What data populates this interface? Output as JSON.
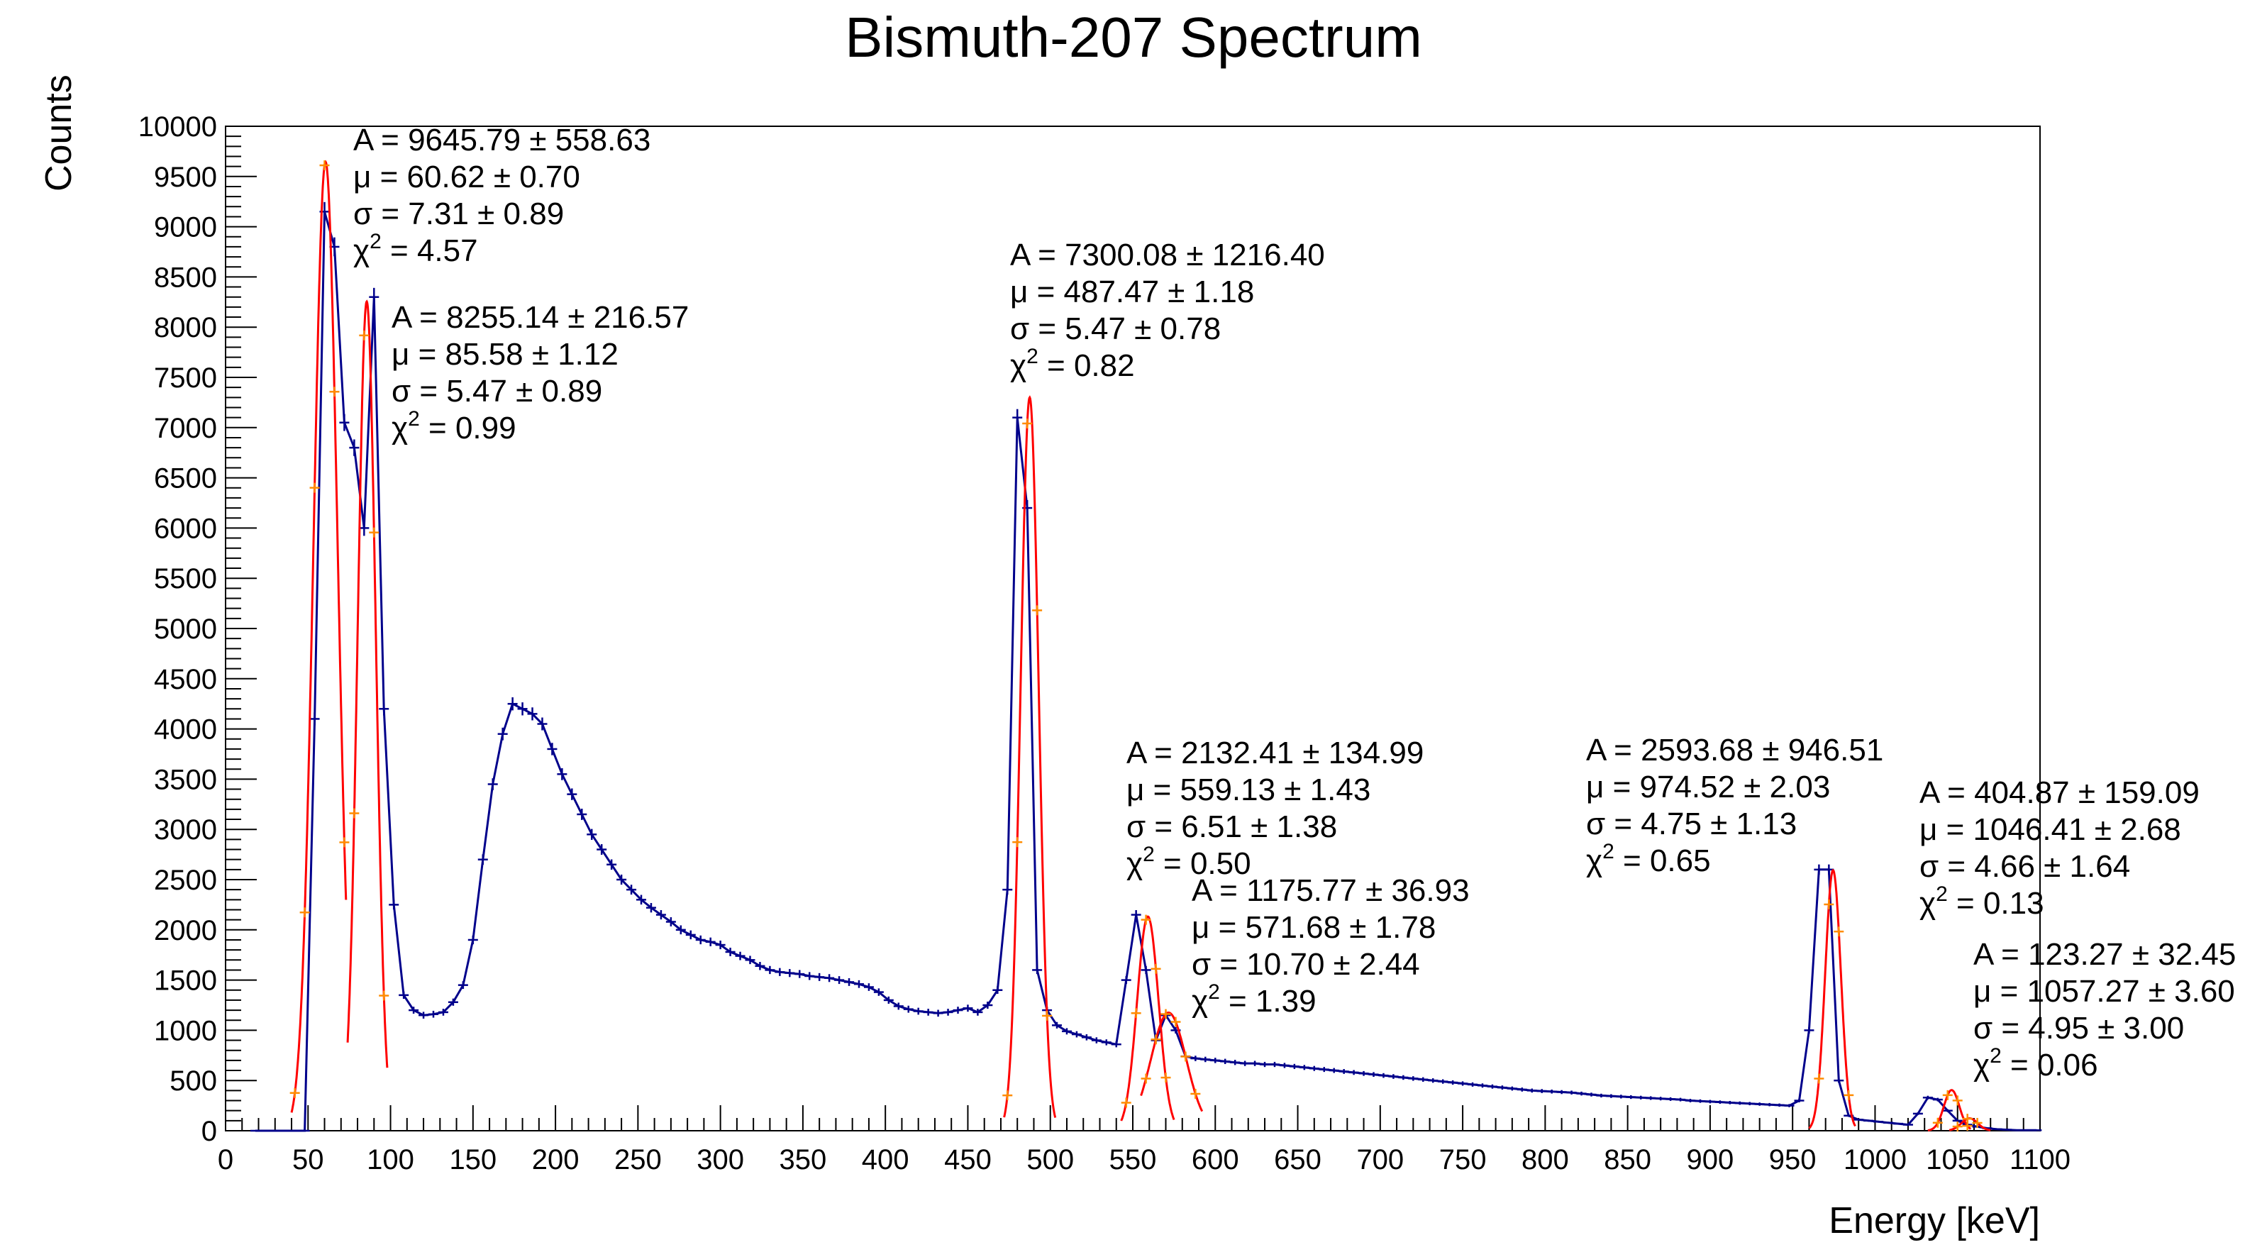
{
  "chart_data": {
    "type": "line",
    "title": "Bismuth-207 Spectrum",
    "xlabel": "Energy [keV]",
    "ylabel": "Counts",
    "xlim": [
      0,
      1100
    ],
    "ylim": [
      0,
      10000
    ],
    "x_ticks": [
      "0",
      "50",
      "100",
      "150",
      "200",
      "250",
      "300",
      "350",
      "400",
      "450",
      "500",
      "550",
      "600",
      "650",
      "700",
      "750",
      "800",
      "850",
      "900",
      "950",
      "1000",
      "1050",
      "1100"
    ],
    "y_ticks": [
      "0",
      "500",
      "1000",
      "1500",
      "2000",
      "2500",
      "3000",
      "3500",
      "4000",
      "4500",
      "5000",
      "5500",
      "6000",
      "6500",
      "7000",
      "7500",
      "8000",
      "8500",
      "9000",
      "9500",
      "10000"
    ],
    "grid": false,
    "colors": {
      "spectrum": "#00008b",
      "fit": "#ff0000",
      "fit_points": "#ff8c00"
    },
    "spectrum": {
      "x": [
        18,
        24,
        30,
        36,
        42,
        48,
        54,
        60,
        66,
        72,
        78,
        84,
        90,
        96,
        102,
        108,
        114,
        120,
        126,
        132,
        138,
        144,
        150,
        156,
        162,
        168,
        174,
        180,
        186,
        192,
        198,
        204,
        210,
        216,
        222,
        228,
        234,
        240,
        246,
        252,
        258,
        264,
        270,
        276,
        282,
        288,
        294,
        300,
        306,
        312,
        318,
        324,
        330,
        336,
        342,
        348,
        354,
        360,
        366,
        372,
        378,
        384,
        390,
        396,
        402,
        408,
        414,
        420,
        426,
        432,
        438,
        444,
        450,
        456,
        462,
        468,
        474,
        480,
        486,
        492,
        498,
        504,
        510,
        516,
        522,
        528,
        534,
        540,
        546,
        552,
        558,
        564,
        570,
        576,
        582,
        588,
        594,
        600,
        606,
        612,
        618,
        624,
        630,
        636,
        642,
        648,
        654,
        660,
        666,
        672,
        678,
        684,
        690,
        696,
        702,
        708,
        714,
        720,
        726,
        732,
        738,
        744,
        750,
        756,
        762,
        768,
        774,
        780,
        786,
        792,
        798,
        804,
        810,
        816,
        822,
        828,
        834,
        840,
        846,
        852,
        858,
        864,
        870,
        876,
        882,
        888,
        894,
        900,
        906,
        912,
        918,
        924,
        930,
        936,
        942,
        948,
        954,
        960,
        966,
        972,
        978,
        984,
        990,
        996,
        1002,
        1008,
        1014,
        1020,
        1026,
        1032,
        1038,
        1044,
        1050,
        1056,
        1062,
        1068,
        1074,
        1080,
        1086,
        1092,
        1098
      ],
      "y": [
        0,
        0,
        0,
        0,
        0,
        0,
        4100,
        9150,
        8800,
        7050,
        6800,
        6000,
        8300,
        4200,
        2250,
        1350,
        1200,
        1150,
        1160,
        1180,
        1280,
        1450,
        1900,
        2700,
        3450,
        3950,
        4250,
        4200,
        4150,
        4050,
        3800,
        3550,
        3350,
        3150,
        2950,
        2800,
        2650,
        2500,
        2400,
        2300,
        2220,
        2150,
        2080,
        2000,
        1950,
        1900,
        1880,
        1850,
        1780,
        1740,
        1700,
        1640,
        1600,
        1580,
        1570,
        1560,
        1540,
        1530,
        1520,
        1500,
        1480,
        1460,
        1430,
        1380,
        1300,
        1240,
        1210,
        1190,
        1180,
        1170,
        1180,
        1200,
        1220,
        1180,
        1250,
        1400,
        2400,
        7100,
        6200,
        1600,
        1200,
        1050,
        990,
        960,
        930,
        900,
        880,
        860,
        1500,
        2150,
        1600,
        900,
        1150,
        1000,
        740,
        720,
        710,
        700,
        690,
        680,
        670,
        670,
        660,
        660,
        650,
        640,
        630,
        620,
        610,
        600,
        590,
        580,
        570,
        560,
        550,
        540,
        530,
        520,
        510,
        500,
        490,
        480,
        470,
        460,
        450,
        440,
        430,
        420,
        410,
        400,
        395,
        390,
        385,
        380,
        370,
        360,
        350,
        345,
        340,
        335,
        330,
        325,
        320,
        315,
        310,
        300,
        295,
        290,
        285,
        280,
        275,
        270,
        265,
        260,
        255,
        250,
        300,
        1000,
        2600,
        2600,
        500,
        150,
        110,
        100,
        90,
        80,
        70,
        60,
        170,
        330,
        310,
        200,
        100,
        60,
        40,
        25,
        15,
        10,
        5,
        5,
        5
      ]
    },
    "fits": [
      {
        "A": 9645.79,
        "mu": 60.62,
        "sigma": 7.31,
        "range": [
          40,
          73
        ]
      },
      {
        "A": 8255.14,
        "mu": 85.58,
        "sigma": 5.47,
        "range": [
          74,
          98
        ]
      },
      {
        "A": 7300.08,
        "mu": 487.47,
        "sigma": 5.47,
        "range": [
          472,
          503
        ]
      },
      {
        "A": 2132.41,
        "mu": 559.13,
        "sigma": 6.51,
        "range": [
          543,
          575
        ]
      },
      {
        "A": 1175.77,
        "mu": 571.68,
        "sigma": 10.7,
        "range": [
          555,
          592
        ]
      },
      {
        "A": 2593.68,
        "mu": 974.52,
        "sigma": 4.75,
        "range": [
          960,
          988
        ]
      },
      {
        "A": 404.87,
        "mu": 1046.41,
        "sigma": 4.66,
        "range": [
          1032,
          1058
        ]
      },
      {
        "A": 123.27,
        "mu": 1057.27,
        "sigma": 4.95,
        "range": [
          1045,
          1070
        ]
      }
    ],
    "annotations": [
      {
        "lines": [
          "A = 9645.79 ± 558.63",
          "μ = 60.62 ± 0.70",
          "σ = 7.31 ± 0.89"
        ],
        "chi_prefix": "χ",
        "chi_sup": "2",
        "chi_value": " = 4.57"
      },
      {
        "lines": [
          "A = 8255.14 ± 216.57",
          "μ = 85.58 ± 1.12",
          "σ = 5.47 ± 0.89"
        ],
        "chi_prefix": "χ",
        "chi_sup": "2",
        "chi_value": " = 0.99"
      },
      {
        "lines": [
          "A = 7300.08 ± 1216.40",
          "μ = 487.47 ± 1.18",
          "σ = 5.47 ± 0.78"
        ],
        "chi_prefix": "χ",
        "chi_sup": "2",
        "chi_value": " = 0.82"
      },
      {
        "lines": [
          "A = 2132.41 ± 134.99",
          "μ = 559.13 ± 1.43",
          "σ = 6.51 ± 1.38"
        ],
        "chi_prefix": "χ",
        "chi_sup": "2",
        "chi_value": " = 0.50"
      },
      {
        "lines": [
          "A = 1175.77 ± 36.93",
          "μ = 571.68 ± 1.78",
          "σ = 10.70 ± 2.44"
        ],
        "chi_prefix": "χ",
        "chi_sup": "2",
        "chi_value": " = 1.39"
      },
      {
        "lines": [
          "A = 2593.68 ± 946.51",
          "μ = 974.52 ± 2.03",
          "σ = 4.75 ± 1.13"
        ],
        "chi_prefix": "χ",
        "chi_sup": "2",
        "chi_value": " = 0.65"
      },
      {
        "lines": [
          "A = 404.87 ± 159.09",
          "μ = 1046.41 ± 2.68",
          "σ = 4.66 ± 1.64"
        ],
        "chi_prefix": "χ",
        "chi_sup": "2",
        "chi_value": " = 0.13"
      },
      {
        "lines": [
          "A = 123.27 ± 32.45",
          "μ = 1057.27 ± 3.60",
          "σ = 4.95 ± 3.00"
        ],
        "chi_prefix": "χ",
        "chi_sup": "2",
        "chi_value": " = 0.06"
      }
    ]
  }
}
